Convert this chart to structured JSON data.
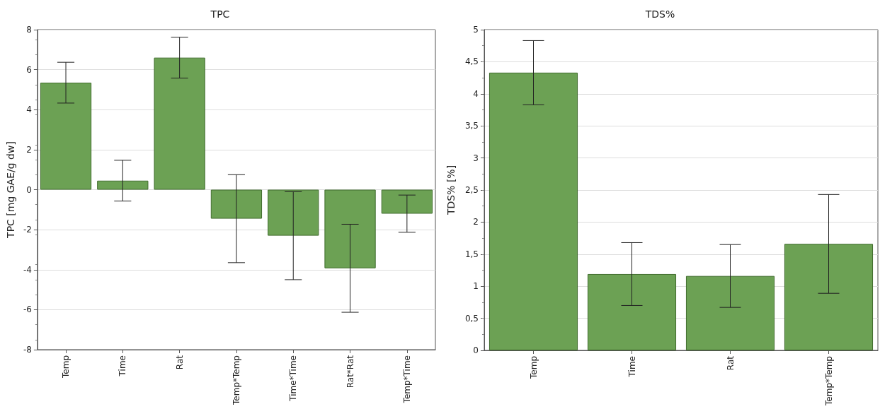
{
  "chart_data": [
    {
      "type": "bar",
      "title": "TPC",
      "ylabel": "TPC [mg GAE/g dw]",
      "categories": [
        "Temp",
        "Time",
        "Rat",
        "Temp*Temp",
        "Time*Time",
        "Rat*Rat",
        "Temp*Time"
      ],
      "values": [
        5.35,
        0.45,
        6.6,
        -1.45,
        -2.3,
        -3.93,
        -1.2
      ],
      "errors": [
        1.02,
        1.02,
        1.02,
        2.2,
        2.2,
        2.2,
        0.93
      ],
      "color": "#6ca154",
      "ylim": [
        -8,
        8
      ],
      "yticks": [
        -8,
        -6,
        -4,
        -2,
        0,
        2,
        4,
        6,
        8
      ],
      "grid": "y"
    },
    {
      "type": "bar",
      "title": "TDS%",
      "ylabel": "TDS% [%]",
      "categories": [
        "Temp",
        "Time",
        "Rat",
        "Temp*Temp"
      ],
      "values": [
        4.33,
        1.19,
        1.16,
        1.66
      ],
      "errors": [
        0.5,
        0.49,
        0.49,
        0.77
      ],
      "color": "#6ca154",
      "ylim": [
        0,
        5
      ],
      "yticks": [
        0,
        {
          "value": 0.5,
          "label": "0,5"
        },
        1,
        {
          "value": 1.5,
          "label": "1,5"
        },
        2,
        {
          "value": 2.5,
          "label": "2,5"
        },
        3,
        {
          "value": 3.5,
          "label": "3,5"
        },
        4,
        {
          "value": 4.5,
          "label": "4,5"
        },
        5
      ],
      "grid": "y"
    }
  ]
}
